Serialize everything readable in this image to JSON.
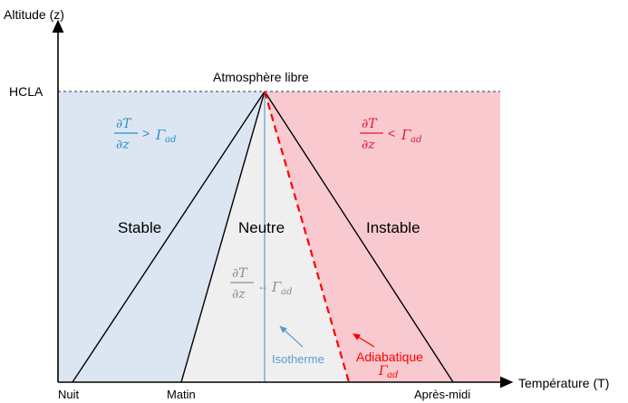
{
  "axes": {
    "y_label": "Altitude (z)",
    "x_label": "Température (T)",
    "hcla_label": "HCLA"
  },
  "top_label": "Atmosphère libre",
  "x_ticks": {
    "night": "Nuit",
    "morning": "Matin",
    "afternoon": "Après-midi"
  },
  "regions": {
    "stable": {
      "label": "Stable",
      "condition_lhs": "∂T/∂z",
      "relation": ">",
      "rhs": "Γad",
      "rhs_main": "Γ",
      "rhs_sub": "ad",
      "color": "#dbe6f2",
      "text_color": "#2e8fc8"
    },
    "neutral": {
      "label": "Neutre",
      "condition_lhs": "∂T/∂z",
      "relation": "↔",
      "rhs": "Γad",
      "rhs_main": "Γ",
      "rhs_sub": "ad",
      "color": "#efefef",
      "text_color": "#8c8c8c"
    },
    "unstable": {
      "label": "Instable",
      "condition_lhs": "∂T/∂z",
      "relation": "<",
      "rhs": "Γad",
      "rhs_main": "Γ",
      "rhs_sub": "ad",
      "color": "#f8c9cf",
      "text_color": "#e8142f"
    }
  },
  "annotations": {
    "isotherm": {
      "label": "Isotherme",
      "color": "#5b9bd5"
    },
    "adiabatic": {
      "label": "Adiabatique",
      "rhs_main": "Γ",
      "rhs_sub": "ad",
      "color": "#ff0000"
    }
  },
  "math": {
    "numerator": "∂T",
    "denominator": "∂z"
  }
}
